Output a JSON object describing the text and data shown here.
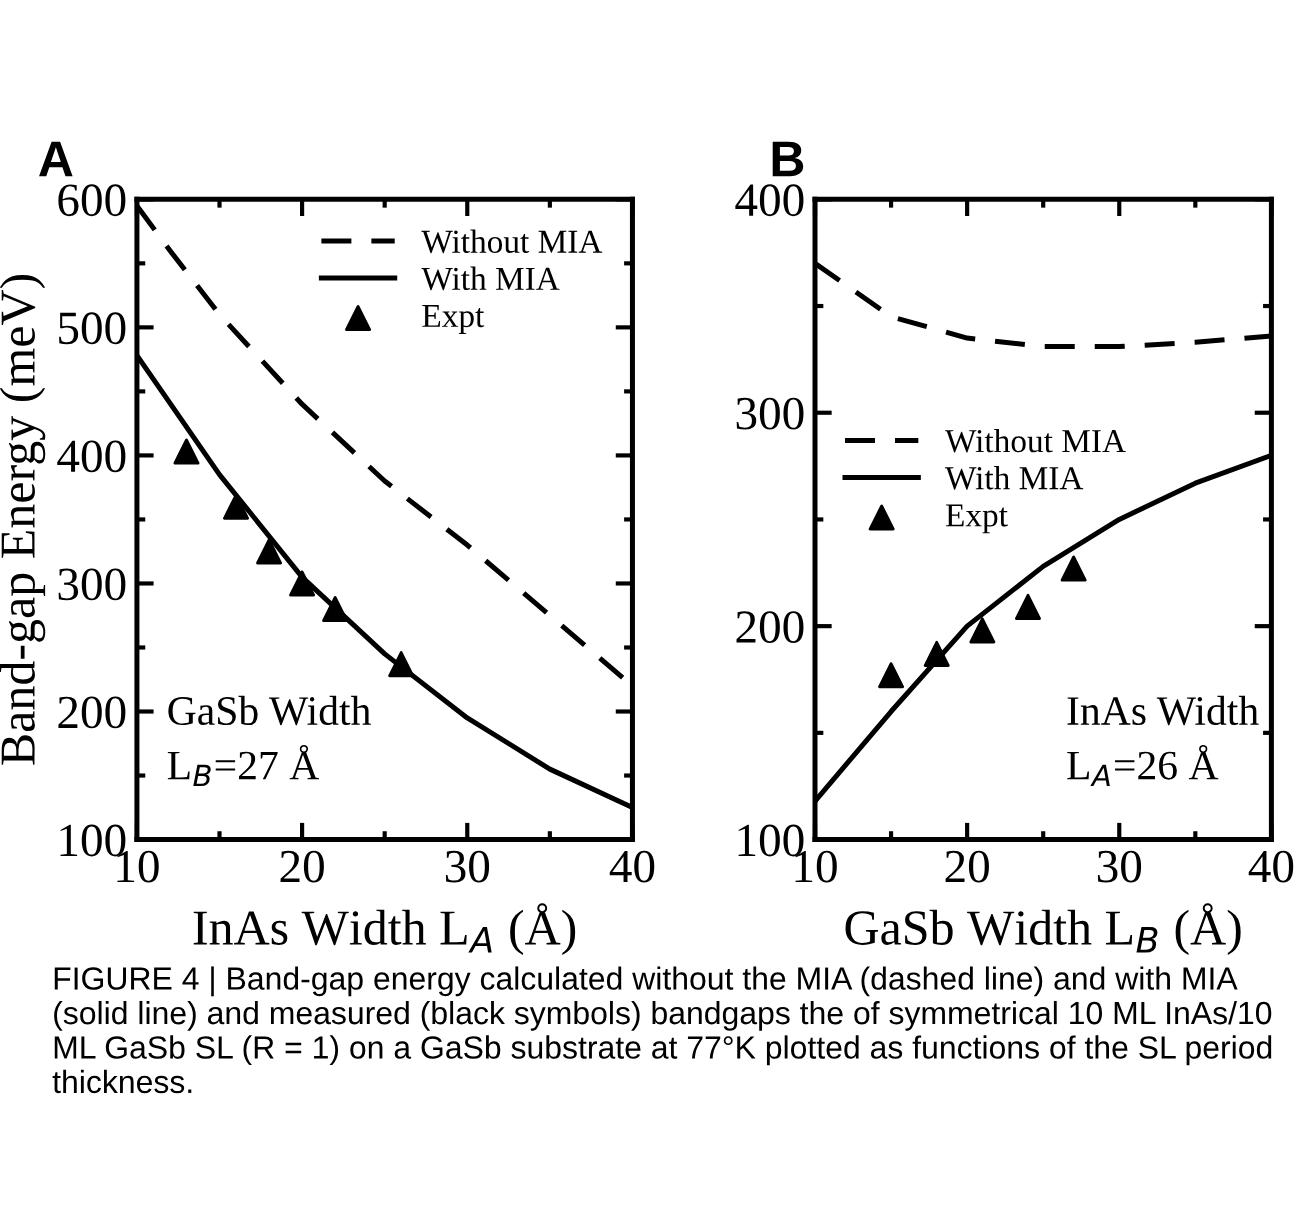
{
  "chart_data": [
    {
      "type": "line",
      "title": "A",
      "xlabel": "InAs Width L$_{A}$ (Å)",
      "ylabel": "Band-gap Energy (meV)",
      "xlim": [
        10,
        40
      ],
      "xticks": [
        10,
        20,
        30,
        40
      ],
      "ylim": [
        100,
        600
      ],
      "yticks": [
        100,
        200,
        300,
        400,
        500,
        600
      ],
      "legend": "top right",
      "grid": false,
      "annotations": [
        "GaSb Width\nL$_{B}$=27 Å"
      ],
      "series": [
        {
          "name": "Without MIA",
          "color": "#000000",
          "line_style": "dashed",
          "marker": "none",
          "x": [
            10,
            12,
            15,
            20,
            25,
            30,
            35,
            40
          ],
          "values": [
            595,
            560,
            510,
            440,
            380,
            330,
            275,
            220
          ]
        },
        {
          "name": "With MIA",
          "color": "#000000",
          "line_style": "solid",
          "marker": "none",
          "x": [
            10,
            15,
            20,
            25,
            30,
            35,
            40
          ],
          "values": [
            478,
            385,
            305,
            245,
            195,
            155,
            125
          ]
        },
        {
          "name": "Expt",
          "type": "scatter",
          "color": "#000000",
          "marker": "triangle",
          "x": [
            13,
            16,
            18,
            20,
            22,
            26
          ],
          "values": [
            403,
            360,
            325,
            300,
            280,
            237
          ]
        }
      ]
    },
    {
      "type": "line",
      "title": "B",
      "xlabel": "GaSb Width L$_{B}$ (Å)",
      "xlim": [
        10,
        40
      ],
      "xticks": [
        10,
        20,
        30,
        40
      ],
      "ylim": [
        100,
        400
      ],
      "yticks": [
        100,
        200,
        300,
        400
      ],
      "legend": "left",
      "grid": false,
      "annotations": [
        "InAs Width\nL$_{A}$=26 Å",
        "FIGURE 4 | Band-gap energy calculated without the MIA (dashed line) and with MIA (solid line) and measured (black symbols) bandgaps the of symmetrical 10 ML InAs/10 ML GaSb SL (R = 1) on a GaSb substrate at 77°K plotted as functions of the SL period thickness."
      ],
      "series": [
        {
          "name": "Without MIA",
          "color": "#000000",
          "line_style": "dashed",
          "marker": "none",
          "x": [
            10,
            15,
            20,
            25,
            30,
            35,
            40
          ],
          "values": [
            370,
            345,
            335,
            331,
            331,
            333,
            336
          ]
        },
        {
          "name": "With MIA",
          "color": "#000000",
          "line_style": "solid",
          "marker": "none",
          "x": [
            10,
            15,
            20,
            25,
            30,
            35,
            40
          ],
          "values": [
            118,
            160,
            200,
            228,
            250,
            267,
            280
          ]
        },
        {
          "name": "Expt",
          "type": "scatter",
          "color": "#000000",
          "marker": "triangle",
          "x": [
            15,
            18,
            21,
            24,
            27
          ],
          "values": [
            177,
            187,
            198,
            209,
            227
          ]
        }
      ]
    }
  ]
}
